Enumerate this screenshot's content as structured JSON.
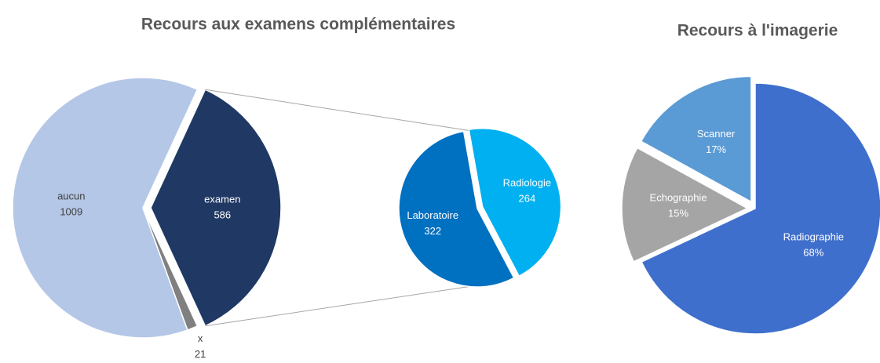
{
  "chart_data": [
    {
      "type": "pie",
      "title": "Recours aux examens complémentaires",
      "categories": [
        "aucun",
        "examen",
        "x"
      ],
      "values": [
        1009,
        586,
        21
      ],
      "colors": [
        "#b4c7e7",
        "#203864",
        "#808080"
      ],
      "detail": {
        "categories": [
          "Laboratoire",
          "Radiologie"
        ],
        "values": [
          322,
          264
        ],
        "colors": [
          "#0070c0",
          "#00b0f0"
        ]
      }
    },
    {
      "type": "pie",
      "title": "Recours à l'imagerie",
      "categories": [
        "Radiographie",
        "Echographie",
        "Scanner"
      ],
      "values": [
        68,
        15,
        17
      ],
      "value_labels": [
        "68%",
        "15%",
        "17%"
      ],
      "colors": [
        "#3f6fcc",
        "#a5a5a5",
        "#5b9bd5"
      ]
    }
  ]
}
